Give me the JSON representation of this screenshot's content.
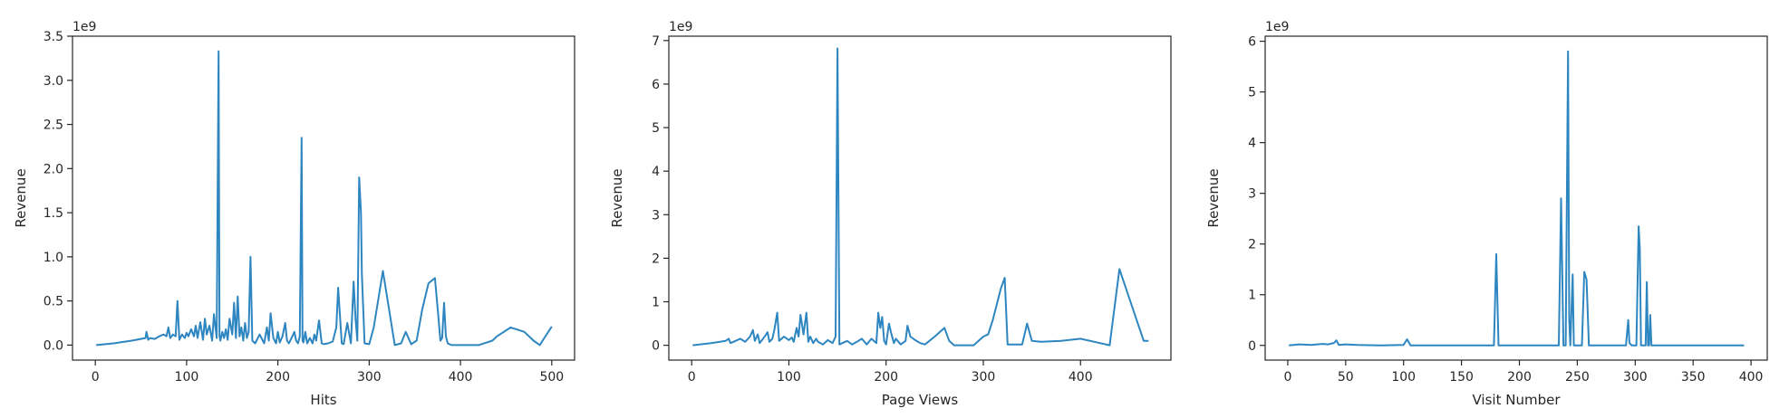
{
  "charts": [
    {
      "type": "line",
      "xlabel": "Hits",
      "ylabel": "Revenue",
      "y_offset_label": "1e9",
      "xlim": [
        -25,
        525
      ],
      "ylim": [
        -0.17,
        3.5
      ],
      "xticks": [
        0,
        100,
        200,
        300,
        400,
        500
      ],
      "xtick_labels": [
        "0",
        "100",
        "200",
        "300",
        "400",
        "500"
      ],
      "yticks": [
        0,
        0.5,
        1.0,
        1.5,
        2.0,
        2.5,
        3.0,
        3.5
      ],
      "ytick_labels": [
        "0.0",
        "0.5",
        "1.0",
        "1.5",
        "2.0",
        "2.5",
        "3.0",
        "3.5"
      ],
      "color": "#2e86c1",
      "grid": false
    },
    {
      "type": "line",
      "xlabel": "Page Views",
      "ylabel": "Revenue",
      "y_offset_label": "1e9",
      "xlim": [
        -23.5,
        493
      ],
      "ylim": [
        -0.34,
        7.1
      ],
      "xticks": [
        0,
        100,
        200,
        300,
        400
      ],
      "xtick_labels": [
        "0",
        "100",
        "200",
        "300",
        "400"
      ],
      "yticks": [
        0,
        1,
        2,
        3,
        4,
        5,
        6,
        7
      ],
      "ytick_labels": [
        "0",
        "1",
        "2",
        "3",
        "4",
        "5",
        "6",
        "7"
      ],
      "color": "#2e86c1",
      "grid": false
    },
    {
      "type": "line",
      "xlabel": "Visit Number",
      "ylabel": "Revenue",
      "y_offset_label": "1e9",
      "xlim": [
        -19.5,
        414
      ],
      "ylim": [
        -0.29,
        6.1
      ],
      "xticks": [
        0,
        50,
        100,
        150,
        200,
        250,
        300,
        350,
        400
      ],
      "xtick_labels": [
        "0",
        "50",
        "100",
        "150",
        "200",
        "250",
        "300",
        "350",
        "400"
      ],
      "yticks": [
        0,
        1,
        2,
        3,
        4,
        5,
        6
      ],
      "ytick_labels": [
        "0",
        "1",
        "2",
        "3",
        "4",
        "5",
        "6"
      ],
      "color": "#2e86c1",
      "grid": false
    }
  ],
  "chart_data": [
    {
      "type": "line",
      "xlabel": "Hits",
      "ylabel": "Revenue",
      "y_scale": 1000000000,
      "series": [
        {
          "x": [
            1,
            20,
            40,
            55,
            56,
            58,
            60,
            65,
            70,
            75,
            78,
            80,
            82,
            85,
            88,
            90,
            92,
            95,
            98,
            100,
            102,
            105,
            108,
            110,
            112,
            115,
            118,
            120,
            122,
            125,
            128,
            130,
            133,
            135,
            136,
            137,
            139,
            141,
            143,
            145,
            147,
            150,
            152,
            154,
            156,
            158,
            160,
            162,
            164,
            166,
            168,
            170,
            172,
            175,
            180,
            185,
            188,
            190,
            192,
            195,
            198,
            200,
            202,
            205,
            208,
            210,
            212,
            215,
            218,
            220,
            222,
            224,
            226,
            227,
            228,
            230,
            232,
            235,
            238,
            240,
            242,
            245,
            248,
            250,
            255,
            260,
            264,
            266,
            270,
            272,
            276,
            280,
            283,
            285,
            287,
            289,
            291,
            292,
            295,
            300,
            305,
            315,
            328,
            335,
            340,
            346,
            352,
            358,
            365,
            372,
            376,
            378,
            380,
            382,
            384,
            386,
            390,
            400,
            405,
            420,
            435,
            440,
            455,
            470,
            480,
            487,
            490,
            500
          ],
          "y": [
            0.0,
            0.02,
            0.05,
            0.08,
            0.15,
            0.06,
            0.08,
            0.07,
            0.1,
            0.12,
            0.1,
            0.2,
            0.08,
            0.12,
            0.1,
            0.5,
            0.06,
            0.12,
            0.08,
            0.14,
            0.1,
            0.18,
            0.1,
            0.22,
            0.08,
            0.26,
            0.06,
            0.3,
            0.12,
            0.22,
            0.05,
            0.35,
            0.08,
            3.33,
            0.1,
            0.05,
            0.15,
            0.08,
            0.18,
            0.06,
            0.3,
            0.12,
            0.48,
            0.08,
            0.55,
            0.1,
            0.2,
            0.05,
            0.25,
            0.08,
            0.15,
            1.0,
            0.05,
            0.02,
            0.12,
            0.02,
            0.2,
            0.05,
            0.36,
            0.08,
            0.02,
            0.15,
            0.03,
            0.1,
            0.25,
            0.05,
            0.02,
            0.08,
            0.15,
            0.05,
            0.02,
            0.1,
            2.35,
            0.05,
            0.03,
            0.15,
            0.02,
            0.08,
            0.02,
            0.12,
            0.05,
            0.28,
            0.02,
            0.01,
            0.02,
            0.04,
            0.2,
            0.65,
            0.02,
            0.01,
            0.25,
            0.02,
            0.72,
            0.3,
            0.05,
            1.9,
            1.5,
            0.8,
            0.02,
            0.01,
            0.2,
            0.84,
            0.0,
            0.02,
            0.15,
            0.01,
            0.05,
            0.4,
            0.7,
            0.76,
            0.3,
            0.05,
            0.08,
            0.48,
            0.1,
            0.02,
            0.0,
            0.0,
            0.0,
            0.0,
            0.05,
            0.1,
            0.2,
            0.15,
            0.05,
            0.0,
            0.05,
            0.21
          ]
        }
      ]
    },
    {
      "type": "line",
      "xlabel": "Page Views",
      "ylabel": "Revenue",
      "y_scale": 1000000000,
      "series": [
        {
          "x": [
            1,
            20,
            35,
            38,
            40,
            45,
            50,
            55,
            60,
            63,
            65,
            68,
            70,
            75,
            78,
            80,
            83,
            85,
            88,
            90,
            95,
            100,
            103,
            105,
            108,
            110,
            112,
            115,
            118,
            120,
            122,
            125,
            128,
            130,
            135,
            140,
            145,
            148,
            150,
            152,
            155,
            160,
            165,
            170,
            175,
            180,
            185,
            190,
            192,
            194,
            196,
            198,
            200,
            203,
            205,
            208,
            210,
            215,
            220,
            222,
            225,
            230,
            235,
            240,
            250,
            260,
            265,
            270,
            272,
            280,
            290,
            300,
            305,
            310,
            318,
            322,
            325,
            340,
            345,
            350,
            360,
            380,
            400,
            420,
            430,
            440,
            465,
            470
          ],
          "y": [
            0.0,
            0.05,
            0.1,
            0.15,
            0.05,
            0.1,
            0.15,
            0.08,
            0.2,
            0.35,
            0.1,
            0.25,
            0.05,
            0.2,
            0.3,
            0.08,
            0.15,
            0.35,
            0.75,
            0.1,
            0.2,
            0.12,
            0.18,
            0.08,
            0.4,
            0.2,
            0.7,
            0.25,
            0.75,
            0.08,
            0.2,
            0.05,
            0.15,
            0.08,
            0.02,
            0.12,
            0.05,
            0.2,
            6.82,
            0.02,
            0.05,
            0.1,
            0.02,
            0.08,
            0.15,
            0.02,
            0.15,
            0.05,
            0.75,
            0.4,
            0.65,
            0.1,
            0.02,
            0.5,
            0.3,
            0.05,
            0.15,
            0.02,
            0.1,
            0.45,
            0.2,
            0.12,
            0.05,
            0.02,
            0.2,
            0.4,
            0.1,
            0.0,
            0.0,
            0.0,
            0.0,
            0.2,
            0.25,
            0.6,
            1.3,
            1.55,
            0.02,
            0.02,
            0.5,
            0.1,
            0.08,
            0.1,
            0.15,
            0.05,
            0.0,
            1.75,
            0.1,
            0.1
          ]
        }
      ]
    },
    {
      "type": "line",
      "xlabel": "Visit Number",
      "ylabel": "Revenue",
      "y_scale": 1000000000,
      "series": [
        {
          "x": [
            1,
            10,
            20,
            30,
            35,
            40,
            42,
            44,
            50,
            60,
            80,
            100,
            103,
            106,
            120,
            150,
            178,
            180,
            182,
            200,
            230,
            234,
            236,
            238,
            240,
            242,
            243,
            244,
            246,
            247,
            249,
            254,
            256,
            258,
            260,
            262,
            280,
            292,
            294,
            295,
            297,
            299,
            301,
            303,
            304,
            305,
            307,
            309,
            310,
            311,
            312,
            313,
            314,
            316,
            320,
            340,
            360,
            394
          ],
          "y": [
            0.0,
            0.02,
            0.01,
            0.03,
            0.02,
            0.05,
            0.1,
            0.01,
            0.02,
            0.01,
            0.0,
            0.01,
            0.12,
            0.0,
            0.0,
            0.0,
            0.0,
            1.8,
            0.0,
            0.0,
            0.0,
            0.0,
            2.9,
            0.0,
            0.0,
            5.8,
            0.5,
            0.0,
            1.4,
            0.0,
            0.0,
            0.0,
            1.45,
            1.3,
            0.0,
            0.0,
            0.0,
            0.0,
            0.5,
            0.05,
            0.0,
            0.0,
            0.0,
            2.35,
            1.9,
            0.0,
            0.0,
            0.0,
            1.25,
            0.0,
            0.0,
            0.6,
            0.0,
            0.0,
            0.0,
            0.0,
            0.0,
            0.0
          ]
        }
      ]
    }
  ]
}
